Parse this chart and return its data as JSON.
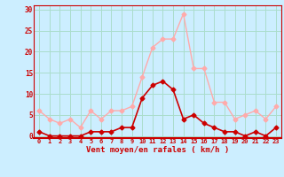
{
  "x": [
    0,
    1,
    2,
    3,
    4,
    5,
    6,
    7,
    8,
    9,
    10,
    11,
    12,
    13,
    14,
    15,
    16,
    17,
    18,
    19,
    20,
    21,
    22,
    23
  ],
  "vent_moyen": [
    1,
    0,
    0,
    0,
    0,
    1,
    1,
    1,
    2,
    2,
    9,
    12,
    13,
    11,
    4,
    5,
    3,
    2,
    1,
    1,
    0,
    1,
    0,
    2
  ],
  "rafales": [
    6,
    4,
    3,
    4,
    2,
    6,
    4,
    6,
    6,
    7,
    14,
    21,
    23,
    23,
    29,
    16,
    16,
    8,
    8,
    4,
    5,
    6,
    4,
    7
  ],
  "color_moyen": "#cc0000",
  "color_rafales": "#ffaaaa",
  "bg_color": "#cceeff",
  "grid_color": "#aaddcc",
  "xlabel": "Vent moyen/en rafales ( km/h )",
  "xlabel_color": "#cc0000",
  "ylabel_ticks": [
    0,
    5,
    10,
    15,
    20,
    25,
    30
  ],
  "ylim": [
    -0.5,
    31
  ],
  "xlim": [
    -0.5,
    23.5
  ],
  "marker_size": 2.5,
  "linewidth_moyen": 1.2,
  "linewidth_rafales": 1.0
}
